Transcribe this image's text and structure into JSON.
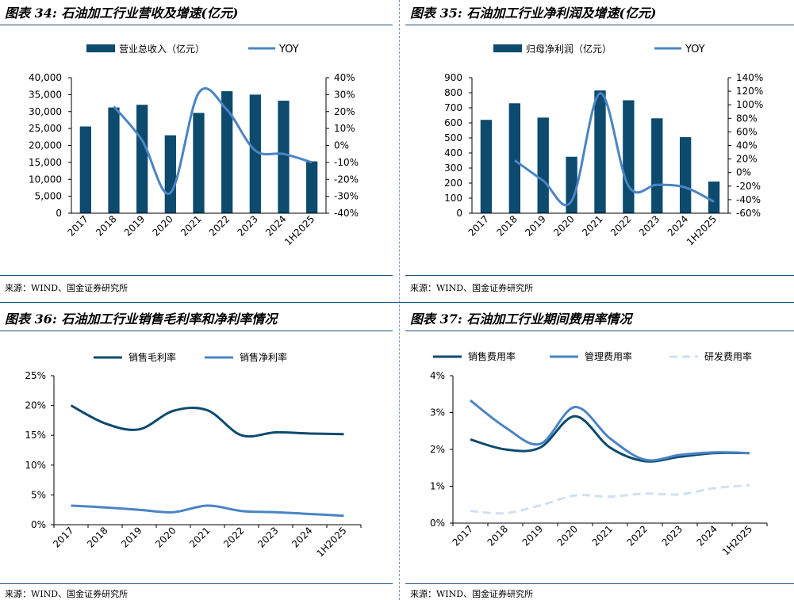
{
  "colors": {
    "navy": "#0c4a6e",
    "mid": "#4a84c4",
    "light": "#cfe0f1",
    "rule": "#1f4e79"
  },
  "source": "来源：WIND、国金证券研究所",
  "chart_data": [
    {
      "id": "c34",
      "type": "bar",
      "title": "图表 34: 石油加工行业营收及增速(亿元)",
      "categories": [
        "2017",
        "2018",
        "2019",
        "2020",
        "2021",
        "2022",
        "2023",
        "2024",
        "1H2025"
      ],
      "series": [
        {
          "name": "营业总收入（亿元）",
          "type": "bar",
          "axis": "left",
          "values": [
            25600,
            31200,
            32000,
            23000,
            29600,
            36000,
            35000,
            33200,
            15300
          ]
        },
        {
          "name": "YOY",
          "type": "line",
          "axis": "right",
          "values": [
            null,
            23,
            3,
            -28,
            31,
            21,
            -3,
            -5,
            -10
          ]
        }
      ],
      "ylim": [
        0,
        40000
      ],
      "y2lim": [
        -40,
        40
      ],
      "yticks": [
        "0",
        "5,000",
        "10,000",
        "15,000",
        "20,000",
        "25,000",
        "30,000",
        "35,000",
        "40,000"
      ],
      "y2ticks": [
        "-40%",
        "-30%",
        "-20%",
        "-10%",
        "0%",
        "10%",
        "20%",
        "30%",
        "40%"
      ],
      "legend": "top"
    },
    {
      "id": "c35",
      "type": "bar",
      "title": "图表 35: 石油加工行业净利润及增速(亿元)",
      "categories": [
        "2017",
        "2018",
        "2019",
        "2020",
        "2021",
        "2022",
        "2023",
        "2024",
        "1H2025"
      ],
      "series": [
        {
          "name": "归母净利润（亿元）",
          "type": "bar",
          "axis": "left",
          "values": [
            620,
            730,
            635,
            375,
            815,
            750,
            630,
            505,
            210
          ]
        },
        {
          "name": "YOY",
          "type": "line",
          "axis": "right",
          "values": [
            null,
            18,
            -12,
            -42,
            117,
            -20,
            -18,
            -22,
            -43
          ]
        }
      ],
      "ylim": [
        0,
        900
      ],
      "y2lim": [
        -60,
        140
      ],
      "yticks": [
        "0",
        "100",
        "200",
        "300",
        "400",
        "500",
        "600",
        "700",
        "800",
        "900"
      ],
      "y2ticks": [
        "-60%",
        "-40%",
        "-20%",
        "0%",
        "20%",
        "40%",
        "60%",
        "80%",
        "100%",
        "120%",
        "140%"
      ],
      "legend": "top"
    },
    {
      "id": "c36",
      "type": "line",
      "title": "图表 36: 石油加工行业销售毛利率和净利率情况",
      "categories": [
        "2017",
        "2018",
        "2019",
        "2020",
        "2021",
        "2022",
        "2023",
        "2024",
        "1H2025"
      ],
      "series": [
        {
          "name": "销售毛利率",
          "values": [
            20.0,
            17.0,
            16.0,
            19.1,
            19.2,
            15.0,
            15.5,
            15.3,
            15.2
          ]
        },
        {
          "name": "销售净利率",
          "values": [
            3.2,
            2.9,
            2.5,
            2.1,
            3.2,
            2.3,
            2.1,
            1.8,
            1.5
          ]
        }
      ],
      "ylim": [
        0,
        25
      ],
      "yticks": [
        "0%",
        "5%",
        "10%",
        "15%",
        "20%",
        "25%"
      ],
      "legend": "top"
    },
    {
      "id": "c37",
      "type": "line",
      "title": "图表 37: 石油加工行业期间费用率情况",
      "categories": [
        "2017",
        "2018",
        "2019",
        "2020",
        "2021",
        "2022",
        "2023",
        "2024",
        "1H2025"
      ],
      "series": [
        {
          "name": "销售费用率",
          "values": [
            2.27,
            2.0,
            2.05,
            2.9,
            2.05,
            1.68,
            1.8,
            1.9,
            1.9
          ]
        },
        {
          "name": "管理费用率",
          "values": [
            3.33,
            2.6,
            2.15,
            3.15,
            2.3,
            1.72,
            1.85,
            1.92,
            1.9
          ]
        },
        {
          "name": "研发费用率",
          "dashed": true,
          "values": [
            0.33,
            0.27,
            0.48,
            0.75,
            0.72,
            0.8,
            0.78,
            0.95,
            1.03
          ]
        }
      ],
      "ylim": [
        0,
        4
      ],
      "yticks": [
        "0%",
        "1%",
        "2%",
        "3%",
        "4%"
      ],
      "legend": "top"
    }
  ]
}
